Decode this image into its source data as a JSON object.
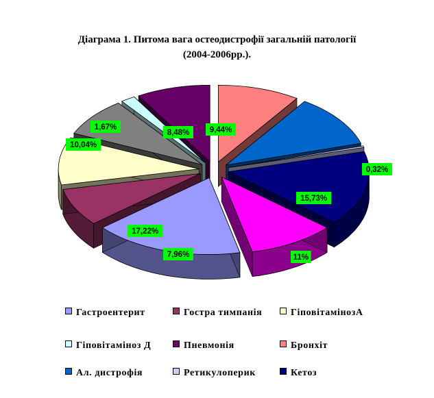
{
  "chart_data": {
    "type": "pie",
    "title": "Діаграма 1. Питома вага остеодистрофії загальній патології",
    "subtitle": "(2004-2006рр.).",
    "slices": [
      {
        "name": "Гастроентерит",
        "value": 17.22,
        "label": "17,22%",
        "color": "#9999FF"
      },
      {
        "name": "Гостра тимпанія",
        "value": 7.96,
        "label": "7,96%",
        "color": "#993366"
      },
      {
        "name": "ГіповітамінозА",
        "value": 10.04,
        "label": "10,04%",
        "color": "#FFFFCC"
      },
      {
        "name": "Гіповітаміноз Д",
        "value": 1.67,
        "label": "1,67%",
        "color": "#CCFFFF"
      },
      {
        "name": "Пневмонія",
        "value": 8.48,
        "label": "8,48%",
        "color": "#660066"
      },
      {
        "name": "Бронхіт",
        "value": 9.44,
        "label": "9,44%",
        "color": "#FF8080"
      },
      {
        "name": "Ал. дистрофія",
        "value": 11,
        "label": "11%",
        "color": "#0066CC"
      },
      {
        "name": "Ретикулоперик",
        "value": 0.32,
        "label": "0,32%",
        "color": "#CCCCFF"
      },
      {
        "name": "Кетоз",
        "value": 15.73,
        "label": "15,73%",
        "color": "#000080"
      }
    ],
    "extra_slices": [
      {
        "value": 10.0,
        "color": "#FF00FF"
      },
      {
        "value": 8.14,
        "color": "#808080"
      }
    ],
    "label_background": "#00FF00",
    "legend_position": "bottom",
    "exploded": true,
    "style": "3d"
  }
}
